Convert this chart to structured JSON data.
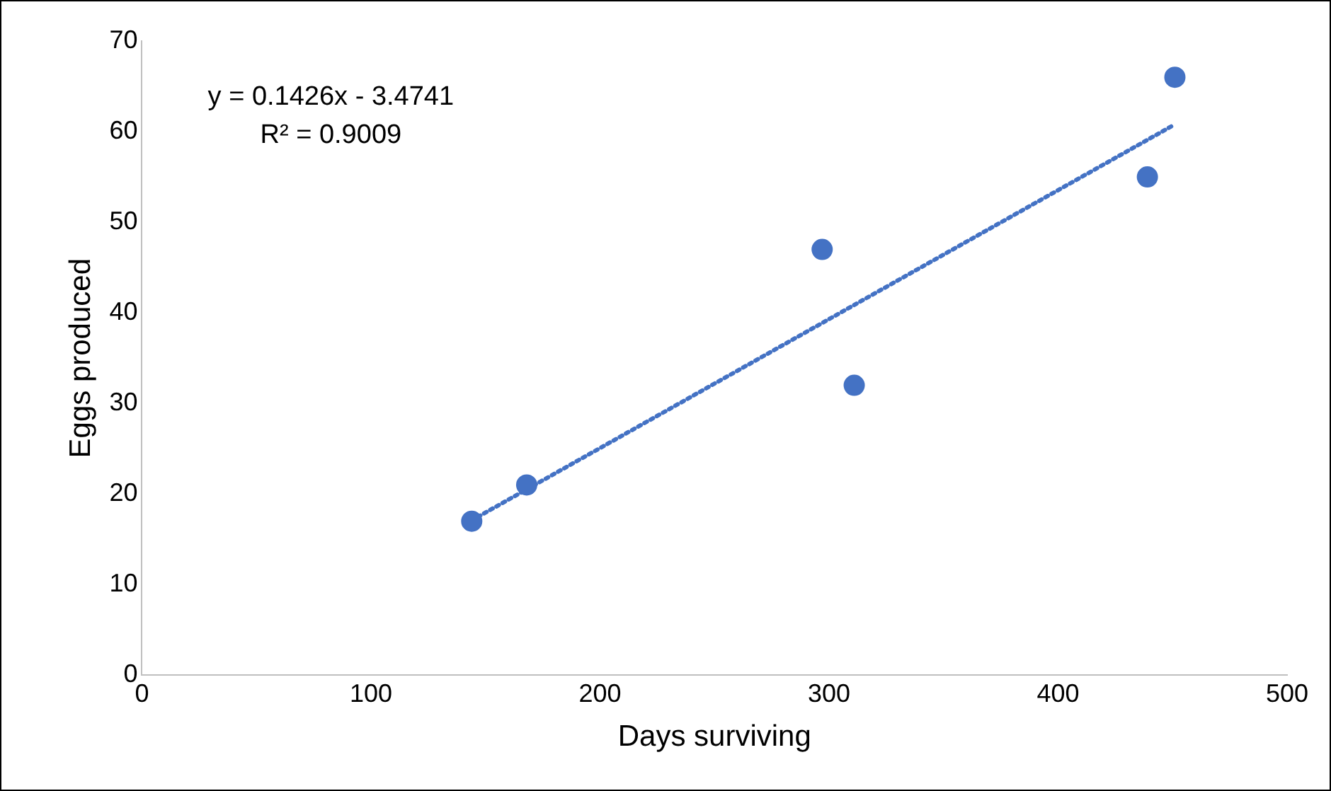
{
  "chart_data": {
    "type": "scatter",
    "xlabel": "Days surviving",
    "ylabel": "Eggs produced",
    "x": [
      144,
      168,
      297,
      311,
      439,
      451
    ],
    "series": [
      {
        "color": "#4472c4",
        "values": [
          17,
          21,
          47,
          32,
          55,
          66
        ]
      },
      {
        "type": "line",
        "color": "#4472c4",
        "line_style": "dotted",
        "marker": "none",
        "x": [
          144,
          451
        ],
        "values": [
          17.1,
          60.8
        ]
      }
    ],
    "marker": "circle",
    "xlim": [
      0,
      500
    ],
    "xticks": [
      0,
      100,
      200,
      300,
      400,
      500
    ],
    "ylim": [
      0,
      70
    ],
    "yticks": [
      0,
      10,
      20,
      30,
      40,
      50,
      60,
      70
    ],
    "grid": false,
    "legend": false,
    "annotations": [
      "y = 0.1426x - 3.4741",
      "R² = 0.9009"
    ]
  }
}
